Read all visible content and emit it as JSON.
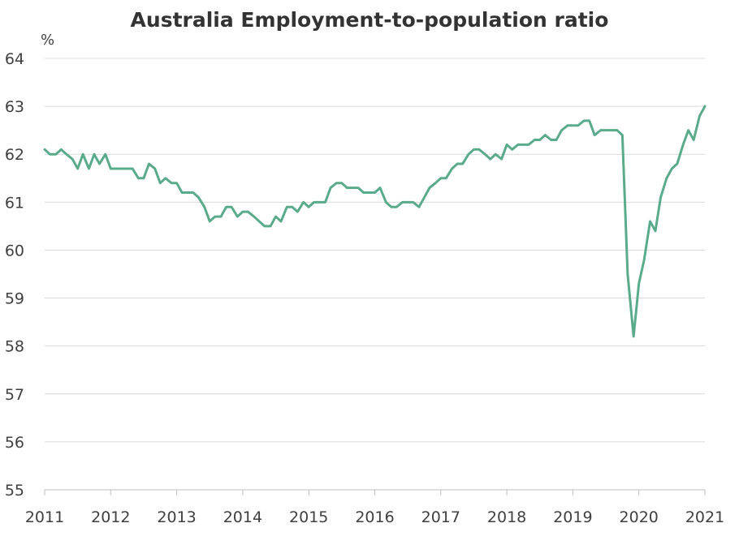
{
  "chart_data": {
    "type": "line",
    "title": "Australia Employment-to-population ratio",
    "y_unit_label": "%",
    "xlabel": "",
    "ylabel": "",
    "xlim": [
      2011,
      2021
    ],
    "ylim": [
      55,
      64
    ],
    "x_ticks": [
      "2011",
      "2012",
      "2013",
      "2014",
      "2015",
      "2016",
      "2017",
      "2018",
      "2019",
      "2020",
      "2021"
    ],
    "y_ticks": [
      "55",
      "56",
      "57",
      "58",
      "59",
      "60",
      "61",
      "62",
      "63",
      "64"
    ],
    "grid": "horizontal",
    "legend": "none",
    "color": "#5aab8c",
    "series": [
      {
        "x": [
          2011.0,
          2011.08,
          2011.17,
          2011.25,
          2011.33,
          2011.42,
          2011.5,
          2011.58,
          2011.67,
          2011.75,
          2011.83,
          2011.92,
          2012.0,
          2012.08,
          2012.17,
          2012.25,
          2012.33,
          2012.42,
          2012.5,
          2012.58,
          2012.67,
          2012.75,
          2012.83,
          2012.92,
          2013.0,
          2013.08,
          2013.17,
          2013.25,
          2013.33,
          2013.42,
          2013.5,
          2013.58,
          2013.67,
          2013.75,
          2013.83,
          2013.92,
          2014.0,
          2014.08,
          2014.17,
          2014.25,
          2014.33,
          2014.42,
          2014.5,
          2014.58,
          2014.67,
          2014.75,
          2014.83,
          2014.92,
          2015.0,
          2015.08,
          2015.17,
          2015.25,
          2015.33,
          2015.42,
          2015.5,
          2015.58,
          2015.67,
          2015.75,
          2015.83,
          2015.92,
          2016.0,
          2016.08,
          2016.17,
          2016.25,
          2016.33,
          2016.42,
          2016.5,
          2016.58,
          2016.67,
          2016.75,
          2016.83,
          2016.92,
          2017.0,
          2017.08,
          2017.17,
          2017.25,
          2017.33,
          2017.42,
          2017.5,
          2017.58,
          2017.67,
          2017.75,
          2017.83,
          2017.92,
          2018.0,
          2018.08,
          2018.17,
          2018.25,
          2018.33,
          2018.42,
          2018.5,
          2018.58,
          2018.67,
          2018.75,
          2018.83,
          2018.92,
          2019.0,
          2019.08,
          2019.17,
          2019.25,
          2019.33,
          2019.42,
          2019.5,
          2019.58,
          2019.67,
          2019.75,
          2019.83,
          2019.92,
          2020.0,
          2020.08,
          2020.17,
          2020.25,
          2020.33,
          2020.42,
          2020.5,
          2020.58,
          2020.67,
          2020.75,
          2020.83,
          2020.92,
          2021.0
        ],
        "y": [
          62.1,
          62.0,
          62.0,
          62.1,
          62.0,
          61.9,
          61.7,
          62.0,
          61.7,
          62.0,
          61.8,
          62.0,
          61.7,
          61.7,
          61.7,
          61.7,
          61.7,
          61.5,
          61.5,
          61.8,
          61.7,
          61.4,
          61.5,
          61.4,
          61.4,
          61.2,
          61.2,
          61.2,
          61.1,
          60.9,
          60.6,
          60.7,
          60.7,
          60.9,
          60.9,
          60.7,
          60.8,
          60.8,
          60.7,
          60.6,
          60.5,
          60.5,
          60.7,
          60.6,
          60.9,
          60.9,
          60.8,
          61.0,
          60.9,
          61.0,
          61.0,
          61.0,
          61.3,
          61.4,
          61.4,
          61.3,
          61.3,
          61.3,
          61.2,
          61.2,
          61.2,
          61.3,
          61.0,
          60.9,
          60.9,
          61.0,
          61.0,
          61.0,
          60.9,
          61.1,
          61.3,
          61.4,
          61.5,
          61.5,
          61.7,
          61.8,
          61.8,
          62.0,
          62.1,
          62.1,
          62.0,
          61.9,
          62.0,
          61.9,
          62.2,
          62.1,
          62.2,
          62.2,
          62.2,
          62.3,
          62.3,
          62.4,
          62.3,
          62.3,
          62.5,
          62.6,
          62.6,
          62.6,
          62.7,
          62.7,
          62.4,
          62.5,
          62.5,
          62.5,
          62.5,
          62.4,
          59.5,
          58.2,
          59.3,
          59.8,
          60.6,
          60.4,
          61.1,
          61.5,
          61.7,
          61.8,
          62.2,
          62.5,
          62.3,
          62.8,
          63.0
        ]
      }
    ]
  }
}
